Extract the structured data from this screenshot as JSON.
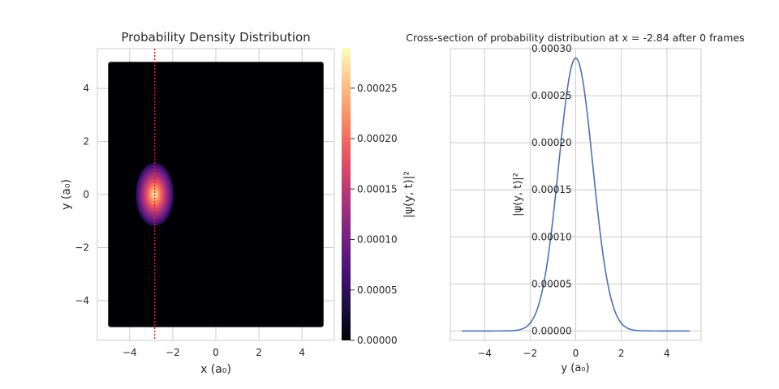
{
  "chart_data": [
    {
      "type": "heatmap",
      "title": "Probability Density Distribution",
      "xlabel": "x (a₀)",
      "ylabel": "y (a₀)",
      "xlim": [
        -5.5,
        5.5
      ],
      "ylim": [
        -5.5,
        5.5
      ],
      "data_extent": [
        -5,
        5,
        -5,
        5
      ],
      "xticks": [
        "−4",
        "−2",
        "0",
        "2",
        "4"
      ],
      "yticks": [
        "−4",
        "−2",
        "0",
        "2",
        "4"
      ],
      "grid": true,
      "colormap": "magma",
      "density": {
        "center_x": -2.84,
        "center_y": 0,
        "sigma_x": 0.55,
        "sigma_y": 0.75,
        "peak": 0.00029
      },
      "cut_line": {
        "x": -2.84,
        "color": "#e8141c",
        "style": "dotted"
      },
      "colorbar": {
        "label": "|ψ(y, t)|²",
        "range": [
          0,
          0.00029
        ],
        "ticks": [
          "0.00000",
          "0.00005",
          "0.00010",
          "0.00015",
          "0.00020",
          "0.00025"
        ]
      }
    },
    {
      "type": "line",
      "title": "Cross-section of probability distribution at x = -2.84 after 0 frames",
      "xlabel": "y (a₀)",
      "ylabel": "|ψ(y, t)|²",
      "xlim": [
        -5.5,
        5.5
      ],
      "ylim": [
        -1e-05,
        0.0003
      ],
      "xticks": [
        "−4",
        "−2",
        "0",
        "2",
        "4"
      ],
      "yticks": [
        "0.00000",
        "0.00005",
        "0.00010",
        "0.00015",
        "0.00020",
        "0.00025",
        "0.00030"
      ],
      "grid": true,
      "series": [
        {
          "color": "#4c72b0",
          "gaussian": {
            "amplitude": 0.00029,
            "mean": 0,
            "sigma": 0.75,
            "x_range": [
              -5,
              5
            ]
          }
        }
      ]
    }
  ]
}
